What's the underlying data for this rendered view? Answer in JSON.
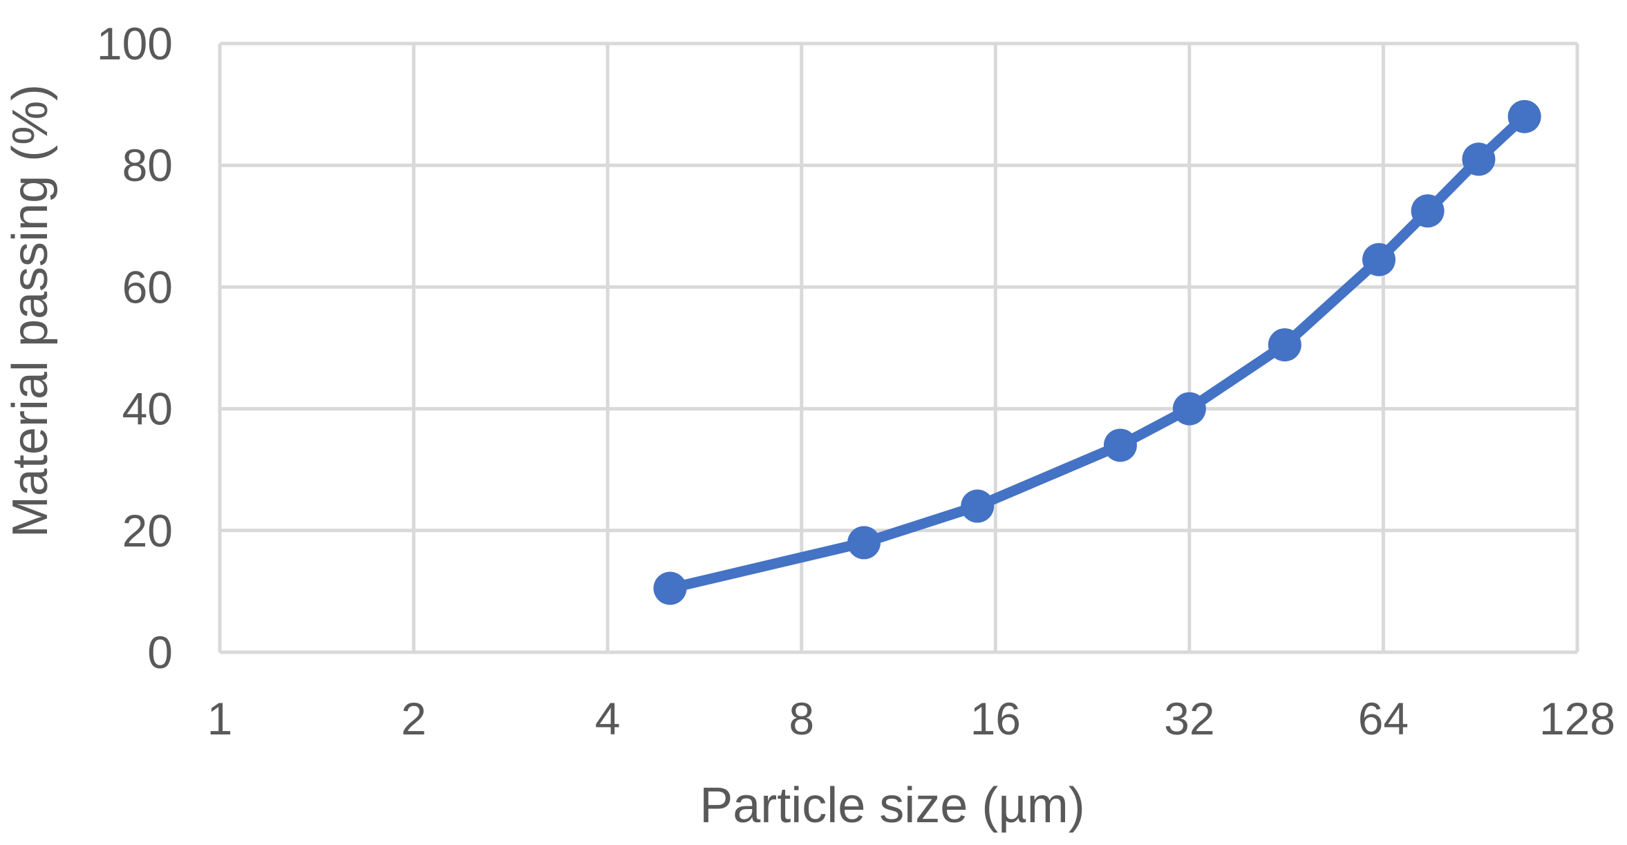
{
  "chart_data": {
    "type": "line",
    "xscale": "log2",
    "xlim": [
      1,
      128
    ],
    "ylim": [
      0,
      100
    ],
    "xticks": [
      1,
      2,
      4,
      8,
      16,
      32,
      64,
      128
    ],
    "yticks": [
      0,
      20,
      40,
      60,
      80,
      100
    ],
    "xtick_labels": [
      "1",
      "2",
      "4",
      "8",
      "16",
      "32",
      "64",
      "128"
    ],
    "ytick_labels": [
      "0",
      "20",
      "40",
      "60",
      "80",
      "100"
    ],
    "xlabel": "Particle size (µm)",
    "ylabel": "Material passing (%)",
    "grid": true,
    "legend": "none",
    "series": [
      {
        "color": "#4472c4",
        "x": [
          5.0,
          10.0,
          15.0,
          25.0,
          32.0,
          45.0,
          63.0,
          75.0,
          90.0,
          106.0
        ],
        "y": [
          10.5,
          18.0,
          24.0,
          34.0,
          40.0,
          50.5,
          64.5,
          72.5,
          81.0,
          88.0
        ]
      }
    ]
  }
}
